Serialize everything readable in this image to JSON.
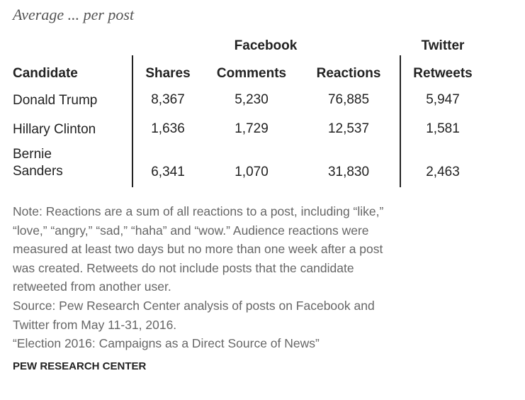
{
  "header": {
    "title": "Average ... per post"
  },
  "table": {
    "groups": [
      "Facebook",
      "Twitter"
    ],
    "columns": [
      "Candidate",
      "Shares",
      "Comments",
      "Reactions",
      "Retweets"
    ],
    "rows": [
      [
        "Donald Trump",
        "8,367",
        "5,230",
        "76,885",
        "5,947"
      ],
      [
        "Hillary Clinton",
        "1,636",
        "1,729",
        "12,537",
        "1,581"
      ],
      [
        "Bernie Sanders",
        "6,341",
        "1,070",
        "31,830",
        "2,463"
      ]
    ]
  },
  "notes": [
    "Note: Reactions are a sum of all reactions to a post, including “like,”",
    "“love,” “angry,” “sad,” “haha” and “wow.” Audience reactions were",
    "measured at least two days but no more than one week after a post",
    "was created. Retweets do not include posts that the candidate",
    "retweeted from another user.",
    "Source: Pew Research Center analysis of posts on Facebook and",
    "Twitter from May 11-31, 2016.",
    "“Election 2016: Campaigns as a Direct Source of News”"
  ],
  "footer": {
    "brand": "PEW RESEARCH CENTER"
  }
}
